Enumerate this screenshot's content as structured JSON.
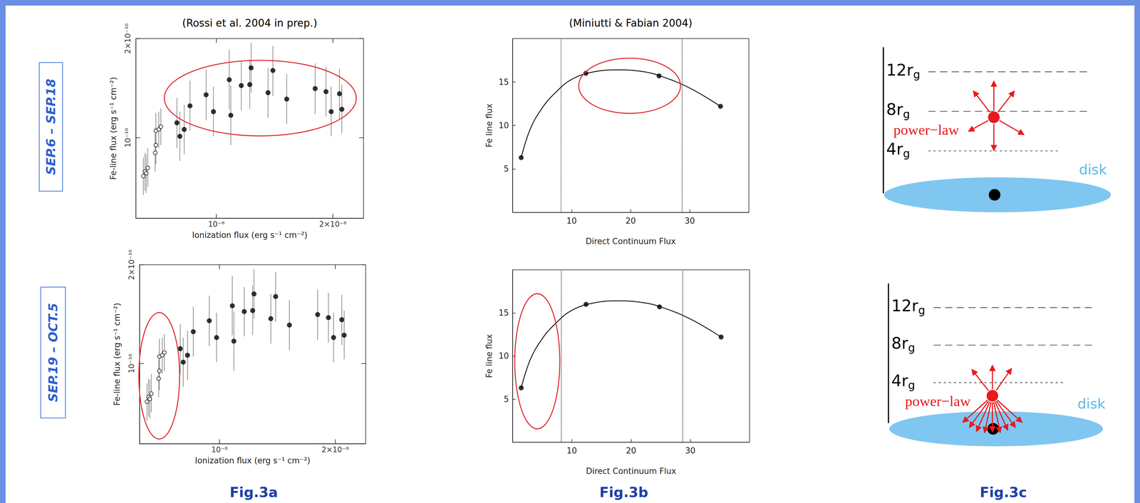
{
  "chart_data": [
    {
      "type": "scatter",
      "title": "(Rossi et al. 2004 in prep.)",
      "x_label": "Ionization flux (erg s⁻¹ cm⁻²)",
      "y_label": "Fe-line flux (erg s⁻¹ cm⁻²)",
      "log": true,
      "grid": false,
      "xlim": [
        6.2e-09,
        2.4e-08
      ],
      "ylim": [
        5.7e-11,
        2e-10
      ],
      "xticks": [
        {
          "value": 1e-08,
          "label": "10⁻⁸"
        },
        {
          "value": 2e-08,
          "label": "2×10⁻⁸"
        }
      ],
      "yticks": [
        {
          "value": 1e-10,
          "label": "10⁻¹⁰"
        },
        {
          "value": 2e-10,
          "label": "2×10⁻¹⁰"
        }
      ],
      "series": [
        {
          "marker": "circle_open",
          "color": "#000000",
          "x": [
            6.48e-09,
            6.54e-09,
            6.59e-09,
            6.65e-09,
            6.95e-09,
            6.98e-09,
            6.98e-09,
            7.1e-09,
            7.19e-09
          ],
          "values": [
            7.65e-11,
            7.9e-11,
            7.8e-11,
            8.1e-11,
            9e-11,
            9.5e-11,
            1.05e-10,
            1.06e-10,
            1.08e-10
          ],
          "error_low": [
            6.7e-11,
            6.9e-11,
            6.8e-11,
            7.1e-11,
            7.9e-11,
            8.3e-11,
            9.2e-11,
            9.3e-11,
            9.5e-11
          ],
          "error_high": [
            8.7e-11,
            9e-11,
            8.9e-11,
            9.3e-11,
            1.03e-10,
            1.08e-10,
            1.19e-10,
            1.2e-10,
            1.23e-10
          ]
        },
        {
          "marker": "circle",
          "color": "#000000",
          "x": [
            7.91e-09,
            8.05e-09,
            8.26e-09,
            8.55e-09,
            9.41e-09,
            9.83e-09,
            1.08e-08,
            1.09e-08,
            1.16e-08,
            1.22e-08,
            1.23e-08,
            1.36e-08,
            1.4e-08,
            1.52e-08,
            1.8e-08,
            1.92e-08,
            1.98e-08,
            2.08e-08,
            2.11e-08
          ],
          "values": [
            1.11e-10,
            1.01e-10,
            1.06e-10,
            1.25e-10,
            1.35e-10,
            1.2e-10,
            1.5e-10,
            1.17e-10,
            1.44e-10,
            1.45e-10,
            1.63e-10,
            1.37e-10,
            1.6e-10,
            1.31e-10,
            1.41e-10,
            1.38e-10,
            1.2e-10,
            1.36e-10,
            1.22e-10
          ],
          "error_low": [
            9.3e-11,
            8.5e-11,
            8.9e-11,
            1.05e-10,
            1.13e-10,
            1.01e-10,
            1.22e-10,
            9.5e-11,
            1.21e-10,
            1.22e-10,
            1.37e-10,
            1.15e-10,
            1.34e-10,
            1.1e-10,
            1.18e-10,
            1.16e-10,
            1.01e-10,
            1.14e-10,
            1.03e-10
          ],
          "error_high": [
            1.32e-10,
            1.2e-10,
            1.26e-10,
            1.49e-10,
            1.61e-10,
            1.43e-10,
            1.85e-10,
            1.44e-10,
            1.71e-10,
            1.73e-10,
            1.94e-10,
            1.63e-10,
            1.9e-10,
            1.56e-10,
            1.68e-10,
            1.64e-10,
            1.43e-10,
            1.62e-10,
            1.45e-10
          ]
        }
      ]
    },
    {
      "type": "line",
      "title": "(Miniutti & Fabian 2004)",
      "x_label": "Direct Continuum Flux",
      "y_label": "Fe line flux",
      "grid": false,
      "xlim": [
        0,
        40
      ],
      "ylim": [
        0,
        20
      ],
      "xticks": [
        10,
        20,
        30
      ],
      "yticks": [
        5,
        10,
        15
      ],
      "vlines": [
        8.2,
        28.7
      ],
      "series": [
        {
          "type": "line",
          "line_style": "solid",
          "color": "#000000",
          "x": [
            1.46,
            3,
            5,
            7,
            10,
            14,
            18,
            22,
            25,
            30,
            35.2
          ],
          "values": [
            6.3,
            9.6,
            12.0,
            13.6,
            15.3,
            16.2,
            16.4,
            16.2,
            15.7,
            14.3,
            12.2
          ]
        },
        {
          "type": "scatter",
          "marker": "circle",
          "color": "#000000",
          "x": [
            1.46,
            12.4,
            24.8,
            35.2
          ],
          "values": [
            6.3,
            16.0,
            15.7,
            12.2
          ]
        }
      ]
    },
    {
      "type": "scatter",
      "x_label": "Ionization flux (erg s⁻¹ cm⁻²)",
      "y_label": "Fe-line flux (erg s⁻¹ cm⁻²)",
      "log": true,
      "grid": false,
      "xlim": [
        6.2e-09,
        2.4e-08
      ],
      "ylim": [
        5.7e-11,
        2e-10
      ],
      "xticks": [
        {
          "value": 1e-08,
          "label": "10⁻⁸"
        },
        {
          "value": 2e-08,
          "label": "2×10⁻⁸"
        }
      ],
      "yticks": [
        {
          "value": 1e-10,
          "label": "10⁻¹⁰"
        },
        {
          "value": 2e-10,
          "label": "2×10⁻¹⁰"
        }
      ],
      "series": [
        {
          "marker": "circle_open",
          "color": "#000000",
          "x": [
            6.48e-09,
            6.54e-09,
            6.59e-09,
            6.65e-09,
            6.95e-09,
            6.98e-09,
            6.98e-09,
            7.1e-09,
            7.19e-09
          ],
          "values": [
            7.65e-11,
            7.9e-11,
            7.8e-11,
            8.1e-11,
            9e-11,
            9.5e-11,
            1.05e-10,
            1.06e-10,
            1.08e-10
          ],
          "error_low": [
            6.7e-11,
            6.9e-11,
            6.8e-11,
            7.1e-11,
            7.9e-11,
            8.3e-11,
            9.2e-11,
            9.3e-11,
            9.5e-11
          ],
          "error_high": [
            8.7e-11,
            9e-11,
            8.9e-11,
            9.3e-11,
            1.03e-10,
            1.08e-10,
            1.19e-10,
            1.2e-10,
            1.23e-10
          ]
        },
        {
          "marker": "circle",
          "color": "#000000",
          "x": [
            7.91e-09,
            8.05e-09,
            8.26e-09,
            8.55e-09,
            9.41e-09,
            9.83e-09,
            1.08e-08,
            1.09e-08,
            1.16e-08,
            1.22e-08,
            1.23e-08,
            1.36e-08,
            1.4e-08,
            1.52e-08,
            1.8e-08,
            1.92e-08,
            1.98e-08,
            2.08e-08,
            2.11e-08
          ],
          "values": [
            1.11e-10,
            1.01e-10,
            1.06e-10,
            1.25e-10,
            1.35e-10,
            1.2e-10,
            1.5e-10,
            1.17e-10,
            1.44e-10,
            1.45e-10,
            1.63e-10,
            1.37e-10,
            1.6e-10,
            1.31e-10,
            1.41e-10,
            1.38e-10,
            1.2e-10,
            1.36e-10,
            1.22e-10
          ],
          "error_low": [
            9.3e-11,
            8.5e-11,
            8.9e-11,
            1.05e-10,
            1.13e-10,
            1.01e-10,
            1.22e-10,
            9.5e-11,
            1.21e-10,
            1.22e-10,
            1.37e-10,
            1.15e-10,
            1.34e-10,
            1.1e-10,
            1.18e-10,
            1.16e-10,
            1.01e-10,
            1.14e-10,
            1.03e-10
          ],
          "error_high": [
            1.32e-10,
            1.2e-10,
            1.26e-10,
            1.49e-10,
            1.61e-10,
            1.43e-10,
            1.85e-10,
            1.44e-10,
            1.71e-10,
            1.73e-10,
            1.94e-10,
            1.63e-10,
            1.9e-10,
            1.56e-10,
            1.68e-10,
            1.64e-10,
            1.43e-10,
            1.62e-10,
            1.45e-10
          ]
        }
      ]
    },
    {
      "type": "line",
      "x_label": "Direct Continuum Flux",
      "y_label": "Fe line flux",
      "grid": false,
      "xlim": [
        0,
        40
      ],
      "ylim": [
        0,
        20
      ],
      "xticks": [
        10,
        20,
        30
      ],
      "yticks": [
        5,
        10,
        15
      ],
      "vlines": [
        8.2,
        28.7
      ],
      "series": [
        {
          "type": "line",
          "line_style": "solid",
          "color": "#000000",
          "x": [
            1.46,
            3,
            5,
            7,
            10,
            14,
            18,
            22,
            25,
            30,
            35.2
          ],
          "values": [
            6.3,
            9.6,
            12.0,
            13.6,
            15.3,
            16.2,
            16.4,
            16.2,
            15.7,
            14.3,
            12.2
          ]
        },
        {
          "type": "scatter",
          "marker": "circle",
          "color": "#000000",
          "x": [
            1.46,
            12.4,
            24.8,
            35.2
          ],
          "values": [
            6.3,
            16.0,
            15.7,
            12.2
          ]
        }
      ]
    }
  ],
  "row_labels": [
    "SEP.6 – SEP.18",
    "SEP.19 – OCT.5"
  ],
  "figure_labels": [
    "Fig.3a",
    "Fig.3b",
    "Fig.3c"
  ],
  "diagrams": [
    {
      "levels": [
        12,
        8,
        4
      ],
      "level_unit": "r",
      "level_unit_subscript": "g",
      "source_height": 7.4,
      "source_label": "power−law",
      "disk_label": "disk"
    },
    {
      "levels": [
        12,
        8,
        4
      ],
      "level_unit": "r",
      "level_unit_subscript": "g",
      "source_height": 2.6,
      "source_label": "power−law",
      "disk_label": "disk"
    }
  ]
}
